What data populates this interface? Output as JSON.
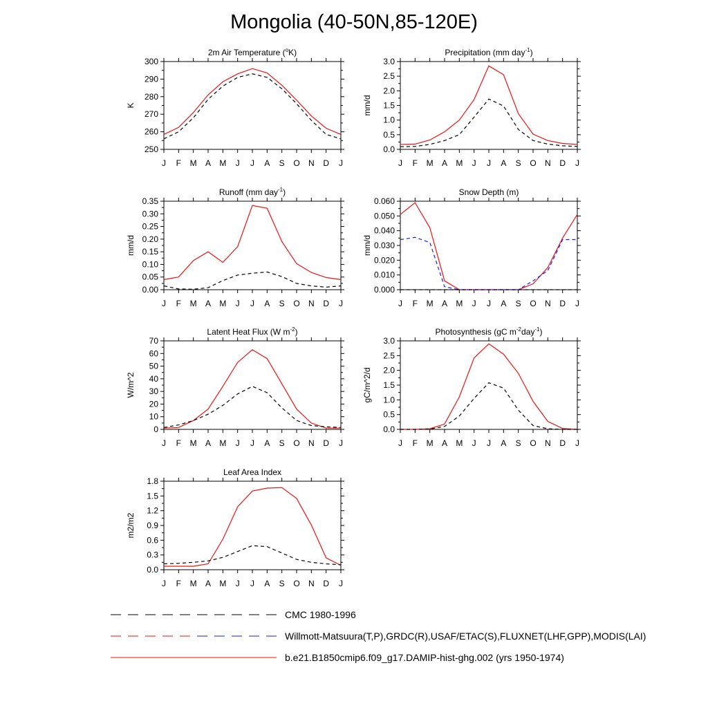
{
  "page_title": "Mongolia (40-50N,85-120E)",
  "months": [
    "J",
    "F",
    "M",
    "A",
    "M",
    "J",
    "J",
    "A",
    "S",
    "O",
    "N",
    "D",
    "J"
  ],
  "colors": {
    "model": "#ee1111",
    "obs_alt": "#1a1aee",
    "obs": "#000000"
  },
  "chart_data": [
    {
      "type": "line",
      "title_main": "2m Air Temperature (",
      "title_sup": "o",
      "title_tail": "K)",
      "ylabel": "K",
      "ylim": [
        250,
        300
      ],
      "yticks": [
        "250",
        "260",
        "270",
        "280",
        "290",
        "300"
      ],
      "series": [
        {
          "color": "#ee1111",
          "dash": "solid",
          "values": [
            258.5,
            262.5,
            271,
            281,
            288.5,
            293,
            296,
            293.5,
            286.5,
            278,
            269,
            262,
            258.5
          ]
        },
        {
          "color": "#000000",
          "dash": "dashed",
          "values": [
            256,
            260,
            268,
            278.5,
            286,
            291,
            293,
            291,
            284.5,
            276,
            266.5,
            258.5,
            256
          ]
        }
      ]
    },
    {
      "type": "line",
      "title_main": "Precipitation (mm day",
      "title_sup": "-1",
      "title_tail": ")",
      "ylabel": "mm/d",
      "ylim": [
        0,
        3
      ],
      "yticks": [
        "0.0",
        "0.5",
        "1.0",
        "1.5",
        "2.0",
        "2.5",
        "3.0"
      ],
      "series": [
        {
          "color": "#ee1111",
          "dash": "solid",
          "values": [
            0.17,
            0.18,
            0.32,
            0.6,
            1.0,
            1.7,
            2.85,
            2.55,
            1.22,
            0.52,
            0.3,
            0.2,
            0.17
          ]
        },
        {
          "color": "#000000",
          "dash": "dashed",
          "values": [
            0.09,
            0.1,
            0.17,
            0.3,
            0.5,
            1.1,
            1.72,
            1.48,
            0.68,
            0.3,
            0.18,
            0.12,
            0.1
          ]
        }
      ]
    },
    {
      "type": "line",
      "title_main": "Runoff (mm day",
      "title_sup": "-1",
      "title_tail": ")",
      "ylabel": "mm/d",
      "ylim": [
        0,
        0.35
      ],
      "yticks": [
        "0.00",
        "0.05",
        "0.10",
        "0.15",
        "0.20",
        "0.25",
        "0.30",
        "0.35"
      ],
      "series": [
        {
          "color": "#ee1111",
          "dash": "solid",
          "values": [
            0.04,
            0.05,
            0.115,
            0.15,
            0.108,
            0.17,
            0.333,
            0.322,
            0.19,
            0.103,
            0.068,
            0.048,
            0.04
          ]
        },
        {
          "color": "#000000",
          "dash": "dashed",
          "values": [
            0.015,
            0.003,
            0.002,
            0.008,
            0.036,
            0.058,
            0.065,
            0.07,
            0.052,
            0.025,
            0.015,
            0.01,
            0.015
          ]
        }
      ]
    },
    {
      "type": "line",
      "title_main": "Snow Depth (m)",
      "title_sup": "",
      "title_tail": "",
      "ylabel": "mm/d",
      "ylim": [
        0,
        0.06
      ],
      "yticks": [
        "0.000",
        "0.010",
        "0.020",
        "0.030",
        "0.040",
        "0.050",
        "0.060"
      ],
      "series": [
        {
          "color": "#ee1111",
          "dash": "solid",
          "values": [
            0.051,
            0.059,
            0.042,
            0.006,
            0.0,
            0.0,
            0.0,
            0.0,
            0.0,
            0.004,
            0.015,
            0.035,
            0.051
          ]
        },
        {
          "color": "#1a1aee",
          "dash": "dashed",
          "values": [
            0.034,
            0.0355,
            0.032,
            0.002,
            0.0,
            0.0,
            0.0,
            0.0,
            0.0,
            0.006,
            0.013,
            0.034,
            0.034
          ]
        },
        {
          "color": "#000000",
          "dash": "dashed",
          "values": [
            0,
            0,
            0,
            0,
            0,
            0,
            0,
            0,
            0,
            0,
            0,
            0,
            0
          ]
        }
      ]
    },
    {
      "type": "line",
      "title_main": "Latent Heat Flux (W m",
      "title_sup": "-2",
      "title_tail": ")",
      "ylabel": "W/m^2",
      "ylim": [
        0,
        70
      ],
      "yticks": [
        "0",
        "10",
        "20",
        "30",
        "40",
        "50",
        "60",
        "70"
      ],
      "series": [
        {
          "color": "#ee1111",
          "dash": "solid",
          "values": [
            1,
            1.5,
            7,
            16,
            34,
            53,
            63,
            56,
            36,
            16,
            5,
            1,
            1
          ]
        },
        {
          "color": "#000000",
          "dash": "dashed",
          "values": [
            1.5,
            3.5,
            7,
            12,
            19,
            28,
            34,
            29,
            17,
            7,
            3,
            2,
            1.5
          ]
        }
      ]
    },
    {
      "type": "line",
      "title_main": "Photosynthesis (gC m",
      "title_sup": "-2",
      "title_mid": "day",
      "title_sup2": "-1",
      "title_tail": ")",
      "ylabel": "gC/m^2/d",
      "ylim": [
        0,
        3
      ],
      "yticks": [
        "0.0",
        "0.5",
        "1.0",
        "1.5",
        "2.0",
        "2.5",
        "3.0"
      ],
      "series": [
        {
          "color": "#ee1111",
          "dash": "solid",
          "values": [
            0,
            0,
            0.02,
            0.18,
            1.1,
            2.42,
            2.9,
            2.55,
            1.9,
            0.95,
            0.27,
            0.03,
            0
          ]
        },
        {
          "color": "#000000",
          "dash": "dashed",
          "values": [
            0,
            0,
            0.01,
            0.1,
            0.45,
            1.05,
            1.58,
            1.4,
            0.65,
            0.13,
            0.02,
            0,
            0
          ]
        }
      ]
    },
    {
      "type": "line",
      "title_main": "Leaf Area Index",
      "title_sup": "",
      "title_tail": "",
      "ylabel": "m2/m2",
      "ylim": [
        0,
        1.8
      ],
      "yticks": [
        "0.0",
        "0.3",
        "0.6",
        "0.9",
        "1.2",
        "1.5",
        "1.8"
      ],
      "series": [
        {
          "color": "#ee1111",
          "dash": "solid",
          "values": [
            0.07,
            0.07,
            0.07,
            0.12,
            0.62,
            1.28,
            1.6,
            1.66,
            1.67,
            1.45,
            0.91,
            0.24,
            0.09
          ]
        },
        {
          "color": "#000000",
          "dash": "dashed",
          "values": [
            0.12,
            0.13,
            0.15,
            0.18,
            0.25,
            0.37,
            0.49,
            0.47,
            0.34,
            0.21,
            0.15,
            0.12,
            0.1
          ]
        }
      ]
    }
  ],
  "legend": [
    {
      "label": "CMC 1980-1996",
      "color": "#000000",
      "dash": "long-dashed"
    },
    {
      "label": "Willmott-Matsuura(T,P),GRDC(R),USAF/ETAC(S),FLUXNET(LHF,GPP),MODIS(LAI)",
      "color": "#ee1111",
      "alt_color": "#1a1aee",
      "dash": "long-dashed"
    },
    {
      "label": "b.e21.B1850cmip6.f09_g17.DAMIP-hist-ghg.002 (yrs 1950-1974)",
      "color": "#ee1111",
      "dash": "solid"
    }
  ]
}
